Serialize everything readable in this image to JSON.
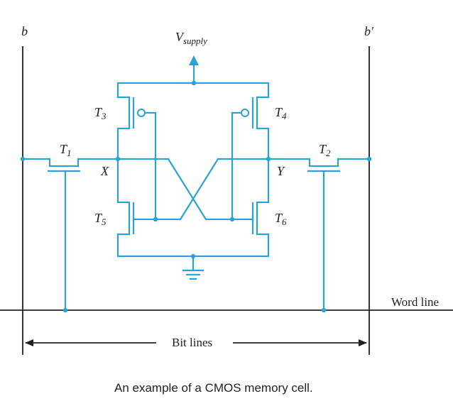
{
  "labels": {
    "bit_line_left": "b",
    "bit_line_right": "b′",
    "supply_main": "V",
    "supply_sub": "supply",
    "node_x": "X",
    "node_y": "Y",
    "word_line": "Word line",
    "bit_lines": "Bit lines"
  },
  "transistors": [
    {
      "main": "T",
      "sub": "1"
    },
    {
      "main": "T",
      "sub": "2"
    },
    {
      "main": "T",
      "sub": "3"
    },
    {
      "main": "T",
      "sub": "4"
    },
    {
      "main": "T",
      "sub": "5"
    },
    {
      "main": "T",
      "sub": "6"
    }
  ],
  "caption": "An example of a CMOS memory cell.",
  "colors": {
    "wire": "#29a3d6",
    "line": "#222222"
  }
}
